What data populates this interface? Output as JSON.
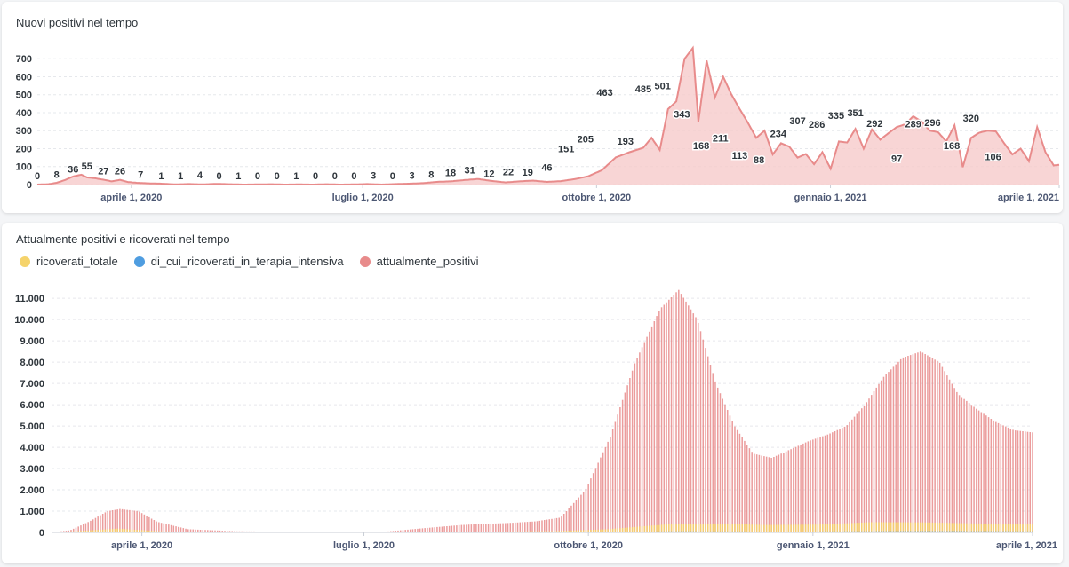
{
  "colors": {
    "positive": "#e88b8b",
    "positive_fill": "#f6cbcb",
    "hospital": "#f5d36b",
    "icu": "#4f9de0",
    "grid": "#e6e8ec",
    "text": "#4c5773"
  },
  "chart_data": [
    {
      "type": "area",
      "title": "Nuovi positivi nel tempo",
      "xlabel": "",
      "ylabel": "",
      "x_range": [
        "2020-02-24",
        "2021-04-01"
      ],
      "ylim": [
        0,
        780
      ],
      "y_ticks": [
        "0",
        "100",
        "200",
        "300",
        "400",
        "500",
        "600",
        "700"
      ],
      "x_tick_labels": [
        "aprile 1, 2020",
        "luglio 1, 2020",
        "ottobre 1, 2020",
        "gennaio 1, 2021",
        "aprile 1, 2021"
      ],
      "grid": true,
      "series": [
        {
          "values": [
            [
              0,
              0
            ],
            [
              8,
              2
            ],
            [
              14,
              10
            ],
            [
              20,
              25
            ],
            [
              26,
              45
            ],
            [
              32,
              55
            ],
            [
              36,
              40
            ],
            [
              42,
              35
            ],
            [
              48,
              27
            ],
            [
              54,
              18
            ],
            [
              60,
              26
            ],
            [
              66,
              14
            ],
            [
              72,
              10
            ],
            [
              80,
              7
            ],
            [
              90,
              5
            ],
            [
              100,
              1
            ],
            [
              110,
              3
            ],
            [
              120,
              1
            ],
            [
              130,
              4
            ],
            [
              140,
              2
            ],
            [
              150,
              0
            ],
            [
              160,
              1
            ],
            [
              170,
              2
            ],
            [
              180,
              0
            ],
            [
              190,
              1
            ],
            [
              200,
              0
            ],
            [
              210,
              2
            ],
            [
              220,
              0
            ],
            [
              230,
              1
            ],
            [
              240,
              3
            ],
            [
              250,
              0
            ],
            [
              260,
              3
            ],
            [
              270,
              5
            ],
            [
              280,
              8
            ],
            [
              290,
              15
            ],
            [
              300,
              18
            ],
            [
              310,
              25
            ],
            [
              320,
              31
            ],
            [
              330,
              20
            ],
            [
              340,
              12
            ],
            [
              350,
              18
            ],
            [
              360,
              22
            ],
            [
              370,
              15
            ],
            [
              380,
              19
            ],
            [
              390,
              30
            ],
            [
              400,
              46
            ],
            [
              410,
              80
            ],
            [
              420,
              151
            ],
            [
              430,
              180
            ],
            [
              440,
              205
            ],
            [
              446,
              260
            ],
            [
              452,
              193
            ],
            [
              458,
              420
            ],
            [
              464,
              463
            ],
            [
              470,
              700
            ],
            [
              476,
              760
            ],
            [
              480,
              350
            ],
            [
              486,
              690
            ],
            [
              492,
              485
            ],
            [
              498,
              600
            ],
            [
              504,
              501
            ],
            [
              510,
              420
            ],
            [
              516,
              343
            ],
            [
              522,
              260
            ],
            [
              528,
              300
            ],
            [
              534,
              168
            ],
            [
              540,
              230
            ],
            [
              546,
              211
            ],
            [
              552,
              150
            ],
            [
              558,
              170
            ],
            [
              564,
              113
            ],
            [
              570,
              180
            ],
            [
              576,
              88
            ],
            [
              582,
              240
            ],
            [
              588,
              234
            ],
            [
              594,
              310
            ],
            [
              600,
              200
            ],
            [
              606,
              307
            ],
            [
              612,
              250
            ],
            [
              618,
              286
            ],
            [
              624,
              320
            ],
            [
              630,
              335
            ],
            [
              636,
              380
            ],
            [
              642,
              351
            ],
            [
              648,
              300
            ],
            [
              654,
              292
            ],
            [
              660,
              240
            ],
            [
              666,
              330
            ],
            [
              672,
              97
            ],
            [
              678,
              260
            ],
            [
              684,
              289
            ],
            [
              690,
              300
            ],
            [
              696,
              296
            ],
            [
              702,
              230
            ],
            [
              708,
              168
            ],
            [
              714,
              200
            ],
            [
              720,
              130
            ],
            [
              726,
              320
            ],
            [
              732,
              180
            ],
            [
              738,
              106
            ],
            [
              742,
              110
            ]
          ]
        }
      ],
      "data_labels": [
        {
          "x": 0,
          "y": 0,
          "label": "0"
        },
        {
          "x": 14,
          "y": 8,
          "label": "8"
        },
        {
          "x": 26,
          "y": 36,
          "label": "36"
        },
        {
          "x": 36,
          "y": 55,
          "label": "55"
        },
        {
          "x": 48,
          "y": 27,
          "label": "27"
        },
        {
          "x": 60,
          "y": 26,
          "label": "26"
        },
        {
          "x": 75,
          "y": 7,
          "label": "7"
        },
        {
          "x": 90,
          "y": 1,
          "label": "1"
        },
        {
          "x": 104,
          "y": 1,
          "label": "1"
        },
        {
          "x": 118,
          "y": 4,
          "label": "4"
        },
        {
          "x": 132,
          "y": 0,
          "label": "0"
        },
        {
          "x": 146,
          "y": 1,
          "label": "1"
        },
        {
          "x": 160,
          "y": 0,
          "label": "0"
        },
        {
          "x": 174,
          "y": 0,
          "label": "0"
        },
        {
          "x": 188,
          "y": 1,
          "label": "1"
        },
        {
          "x": 202,
          "y": 0,
          "label": "0"
        },
        {
          "x": 216,
          "y": 0,
          "label": "0"
        },
        {
          "x": 230,
          "y": 0,
          "label": "0"
        },
        {
          "x": 244,
          "y": 3,
          "label": "3"
        },
        {
          "x": 258,
          "y": 0,
          "label": "0"
        },
        {
          "x": 272,
          "y": 3,
          "label": "3"
        },
        {
          "x": 286,
          "y": 8,
          "label": "8"
        },
        {
          "x": 300,
          "y": 18,
          "label": "18"
        },
        {
          "x": 314,
          "y": 31,
          "label": "31"
        },
        {
          "x": 328,
          "y": 12,
          "label": "12"
        },
        {
          "x": 342,
          "y": 22,
          "label": "22"
        },
        {
          "x": 356,
          "y": 19,
          "label": "19"
        },
        {
          "x": 370,
          "y": 46,
          "label": "46"
        },
        {
          "x": 384,
          "y": 151,
          "label": "151"
        },
        {
          "x": 398,
          "y": 205,
          "label": "205"
        },
        {
          "x": 412,
          "y": 463,
          "label": "463"
        },
        {
          "x": 427,
          "y": 193,
          "label": "193"
        },
        {
          "x": 440,
          "y": 485,
          "label": "485"
        },
        {
          "x": 454,
          "y": 501,
          "label": "501"
        },
        {
          "x": 468,
          "y": 343,
          "label": "343"
        },
        {
          "x": 482,
          "y": 168,
          "label": "168"
        },
        {
          "x": 496,
          "y": 211,
          "label": "211"
        },
        {
          "x": 510,
          "y": 113,
          "label": "113"
        },
        {
          "x": 524,
          "y": 88,
          "label": "88"
        },
        {
          "x": 538,
          "y": 234,
          "label": "234"
        },
        {
          "x": 552,
          "y": 307,
          "label": "307"
        },
        {
          "x": 566,
          "y": 286,
          "label": "286"
        },
        {
          "x": 580,
          "y": 335,
          "label": "335"
        },
        {
          "x": 594,
          "y": 351,
          "label": "351"
        },
        {
          "x": 608,
          "y": 292,
          "label": "292"
        },
        {
          "x": 624,
          "y": 97,
          "label": "97"
        },
        {
          "x": 636,
          "y": 289,
          "label": "289"
        },
        {
          "x": 650,
          "y": 296,
          "label": "296"
        },
        {
          "x": 664,
          "y": 168,
          "label": "168"
        },
        {
          "x": 678,
          "y": 320,
          "label": "320"
        },
        {
          "x": 694,
          "y": 106,
          "label": "106"
        }
      ]
    },
    {
      "type": "bar",
      "title": "Attualmente positivi e ricoverati nel tempo",
      "xlabel": "",
      "ylabel": "",
      "x_range": [
        "2020-02-24",
        "2021-04-01"
      ],
      "ylim": [
        0,
        11800
      ],
      "y_ticks": [
        "0",
        "1.000",
        "2.000",
        "3.000",
        "4.000",
        "5.000",
        "6.000",
        "7.000",
        "8.000",
        "9.000",
        "10.000",
        "11.000"
      ],
      "x_tick_labels": [
        "aprile 1, 2020",
        "luglio 1, 2020",
        "ottobre 1, 2020",
        "gennaio 1, 2021",
        "aprile 1, 2021"
      ],
      "legend_position": "top-left",
      "grid": true,
      "series": [
        {
          "name": "ricoverati_totale",
          "values": [
            [
              0,
              0
            ],
            [
              30,
              100
            ],
            [
              50,
              180
            ],
            [
              80,
              60
            ],
            [
              110,
              20
            ],
            [
              220,
              10
            ],
            [
              300,
              30
            ],
            [
              380,
              60
            ],
            [
              420,
              150
            ],
            [
              470,
              400
            ],
            [
              500,
              420
            ],
            [
              540,
              350
            ],
            [
              580,
              370
            ],
            [
              620,
              480
            ],
            [
              660,
              470
            ],
            [
              700,
              420
            ],
            [
              742,
              400
            ]
          ]
        },
        {
          "name": "di_cui_ricoverati_in_terapia_intensiva",
          "values": [
            [
              0,
              0
            ],
            [
              40,
              30
            ],
            [
              100,
              5
            ],
            [
              380,
              10
            ],
            [
              470,
              50
            ],
            [
              560,
              40
            ],
            [
              660,
              60
            ],
            [
              742,
              50
            ]
          ]
        },
        {
          "name": "attualmente_positivi",
          "values": [
            [
              0,
              0
            ],
            [
              15,
              100
            ],
            [
              30,
              500
            ],
            [
              45,
              1000
            ],
            [
              55,
              1100
            ],
            [
              70,
              1000
            ],
            [
              85,
              500
            ],
            [
              110,
              150
            ],
            [
              150,
              50
            ],
            [
              220,
              20
            ],
            [
              270,
              40
            ],
            [
              300,
              200
            ],
            [
              330,
              350
            ],
            [
              370,
              450
            ],
            [
              390,
              520
            ],
            [
              410,
              700
            ],
            [
              430,
              2000
            ],
            [
              450,
              4500
            ],
            [
              470,
              8000
            ],
            [
              490,
              10500
            ],
            [
              505,
              11400
            ],
            [
              520,
              10000
            ],
            [
              535,
              7000
            ],
            [
              550,
              5000
            ],
            [
              565,
              3700
            ],
            [
              580,
              3500
            ],
            [
              595,
              3900
            ],
            [
              610,
              4300
            ],
            [
              625,
              4600
            ],
            [
              640,
              5000
            ],
            [
              655,
              6000
            ],
            [
              670,
              7300
            ],
            [
              685,
              8200
            ],
            [
              700,
              8500
            ],
            [
              715,
              8000
            ],
            [
              730,
              6500
            ],
            [
              745,
              5800
            ],
            [
              760,
              5200
            ],
            [
              775,
              4800
            ],
            [
              790,
              4700
            ]
          ]
        }
      ]
    }
  ]
}
